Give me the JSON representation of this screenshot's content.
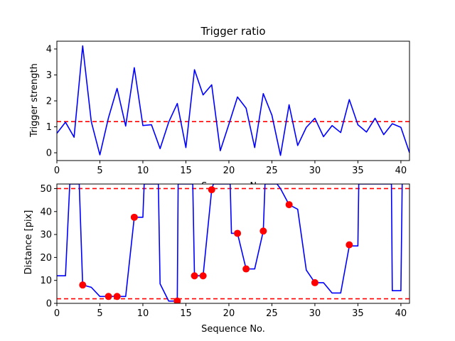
{
  "chart_data": [
    {
      "type": "line",
      "title": "Trigger ratio",
      "xlabel": "Sequence No.",
      "ylabel": "Trigger strength",
      "xlim": [
        0,
        41
      ],
      "ylim": [
        -0.3,
        4.3
      ],
      "xticks": [
        0,
        5,
        10,
        15,
        20,
        25,
        30,
        35,
        40
      ],
      "yticks": [
        0,
        1,
        2,
        3,
        4
      ],
      "grid": false,
      "series": [
        {
          "color": "#0000ff",
          "style": "solid",
          "x": [
            0,
            1,
            2,
            3,
            4,
            5,
            6,
            7,
            8,
            9,
            10,
            11,
            12,
            13,
            14,
            15,
            16,
            17,
            18,
            19,
            20,
            21,
            22,
            23,
            24,
            25,
            26,
            27,
            28,
            29,
            30,
            31,
            32,
            33,
            34,
            35,
            36,
            37,
            38,
            39,
            40,
            41
          ],
          "y": [
            0.75,
            1.18,
            0.6,
            4.12,
            1.2,
            -0.08,
            1.35,
            2.48,
            1.03,
            3.28,
            1.05,
            1.08,
            0.16,
            1.18,
            1.9,
            0.2,
            3.2,
            2.23,
            2.62,
            0.08,
            1.1,
            2.15,
            1.72,
            0.2,
            2.28,
            1.45,
            -0.1,
            1.85,
            0.28,
            0.98,
            1.33,
            0.62,
            1.05,
            0.78,
            2.05,
            1.08,
            0.8,
            1.33,
            0.7,
            1.12,
            0.98,
            0.0
          ]
        }
      ],
      "hlines": [
        {
          "y": 1.2,
          "color": "#ff0000",
          "style": "dashed"
        }
      ]
    },
    {
      "type": "line",
      "title": "",
      "xlabel": "Sequence No.",
      "ylabel": "Distance [pix]",
      "xlim": [
        0,
        41
      ],
      "ylim": [
        0,
        52
      ],
      "xticks": [
        0,
        5,
        10,
        15,
        20,
        25,
        30,
        35,
        40
      ],
      "yticks": [
        0,
        10,
        20,
        30,
        40,
        50
      ],
      "grid": false,
      "series": [
        {
          "color": "#0000ff",
          "style": "solid",
          "x": [
            0,
            1,
            1.5,
            2.6,
            3,
            4,
            5,
            6,
            7,
            8,
            9,
            10,
            10.15,
            11.8,
            12,
            13,
            14,
            14.1,
            15.8,
            16,
            17,
            18,
            18.2,
            20.15,
            20.3,
            21,
            22,
            23,
            24,
            24.2,
            25.6,
            26,
            27,
            28,
            29,
            30,
            31,
            32,
            33,
            34,
            35,
            35.1,
            38.9,
            39,
            40,
            40.15
          ],
          "y": [
            12,
            12,
            52,
            52,
            8,
            7,
            3,
            3,
            3,
            3,
            37.5,
            37.5,
            52,
            52,
            8.5,
            1,
            1,
            52,
            52,
            12,
            12,
            49.5,
            52,
            52,
            30.5,
            30.5,
            15,
            15,
            31.5,
            52,
            52,
            50,
            43,
            41,
            14.5,
            9,
            9,
            4.5,
            4.5,
            25,
            25,
            52,
            52,
            5.5,
            5.5,
            52
          ]
        },
        {
          "color": "#ff0000",
          "style": "markers",
          "x": [
            3,
            6,
            7,
            9,
            14,
            16,
            17,
            18,
            21,
            22,
            24,
            27,
            30,
            34
          ],
          "y": [
            8,
            3,
            3,
            37.5,
            1,
            12,
            12,
            49.5,
            30.5,
            15,
            31.5,
            43,
            9,
            25.5
          ]
        }
      ],
      "hlines": [
        {
          "y": 50,
          "color": "#ff0000",
          "style": "dashed"
        },
        {
          "y": 2,
          "color": "#ff0000",
          "style": "dashed"
        }
      ]
    }
  ]
}
